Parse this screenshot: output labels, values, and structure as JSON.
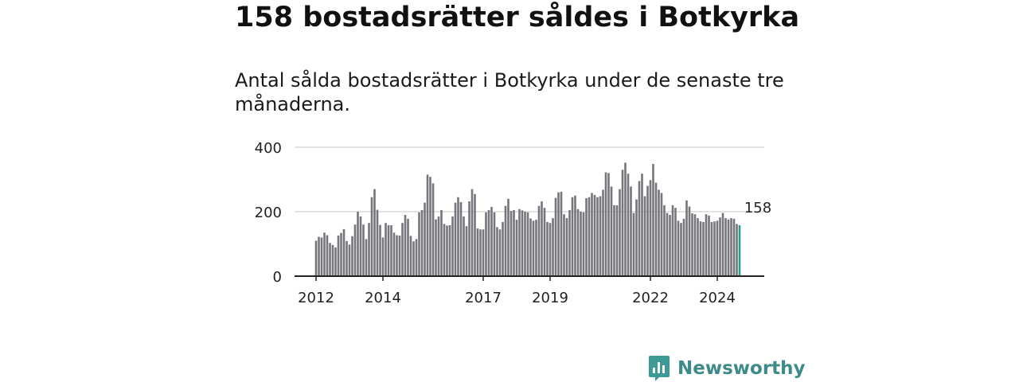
{
  "header": {
    "title": "158 bostadsrätter såldes i Botkyrka",
    "subtitle": "Antal sålda bostadsrätter i Botkyrka under de senaste tre månaderna."
  },
  "brand": {
    "name": "Newsworthy",
    "icon": "newsworthy-logo-icon",
    "color": "#3d9a96"
  },
  "colors": {
    "bar": "#76757b",
    "highlight": "#2a9d8f",
    "grid": "#d9d9d9",
    "axis": "#222222"
  },
  "chart_data": {
    "type": "bar",
    "title": "158 bostadsrätter såldes i Botkyrka",
    "xlabel": "",
    "ylabel": "",
    "ylim": [
      0,
      400
    ],
    "yticks": [
      0,
      200,
      400
    ],
    "xticks": [
      "2012",
      "2014",
      "2017",
      "2019",
      "2022",
      "2024"
    ],
    "grid": true,
    "start_month": "2012-01",
    "annotation": {
      "label": "158",
      "value": 158,
      "index": 154
    },
    "values": [
      110,
      122,
      120,
      135,
      127,
      103,
      97,
      89,
      126,
      134,
      146,
      109,
      98,
      124,
      160,
      200,
      185,
      160,
      115,
      165,
      245,
      270,
      206,
      159,
      120,
      165,
      158,
      158,
      135,
      127,
      126,
      165,
      190,
      178,
      125,
      108,
      115,
      198,
      205,
      228,
      315,
      308,
      288,
      176,
      185,
      205,
      162,
      157,
      158,
      185,
      228,
      245,
      230,
      185,
      155,
      232,
      270,
      255,
      148,
      145,
      145,
      198,
      205,
      215,
      198,
      152,
      145,
      168,
      218,
      240,
      202,
      205,
      175,
      208,
      204,
      200,
      198,
      179,
      172,
      175,
      218,
      232,
      212,
      168,
      165,
      180,
      243,
      260,
      262,
      192,
      180,
      205,
      245,
      250,
      208,
      200,
      198,
      242,
      245,
      258,
      252,
      245,
      248,
      268,
      322,
      320,
      278,
      220,
      220,
      270,
      330,
      352,
      318,
      278,
      196,
      238,
      295,
      318,
      248,
      280,
      298,
      348,
      290,
      268,
      258,
      220,
      196,
      190,
      220,
      212,
      172,
      165,
      178,
      235,
      216,
      195,
      192,
      180,
      170,
      168,
      192,
      188,
      168,
      170,
      172,
      182,
      196,
      180,
      176,
      180,
      178,
      162,
      158
    ]
  }
}
